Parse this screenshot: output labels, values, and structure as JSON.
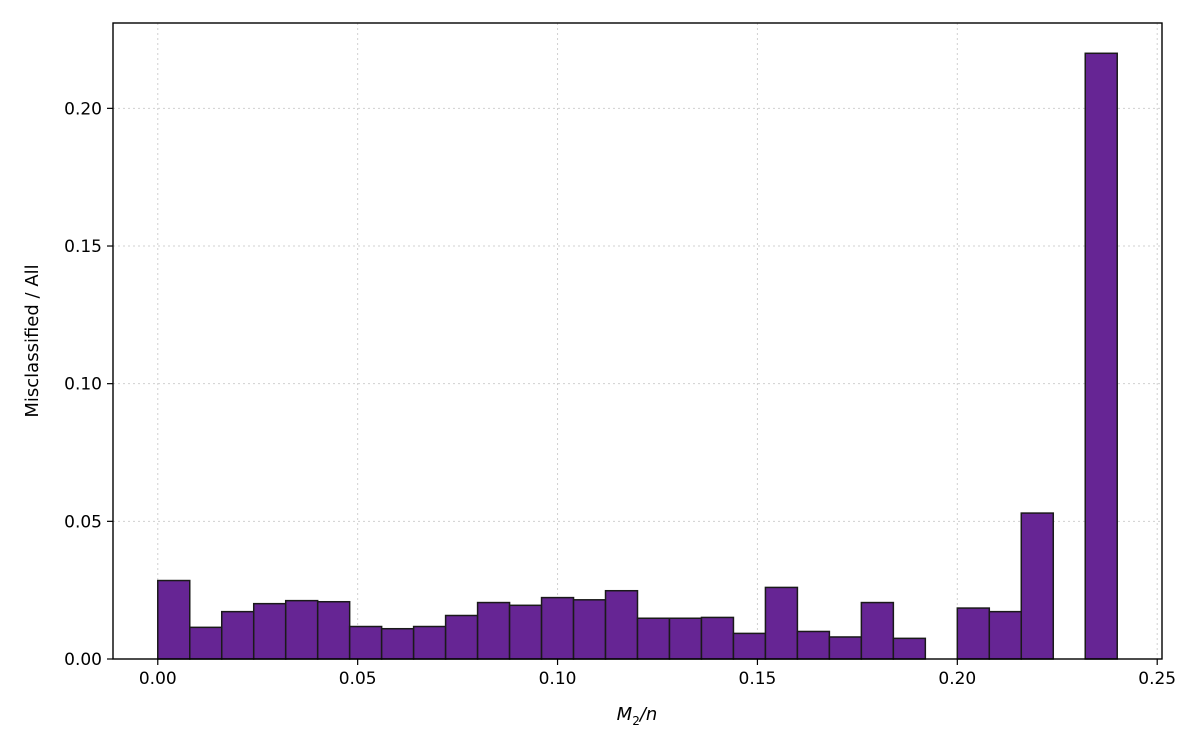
{
  "chart_data": {
    "type": "bar",
    "title": "",
    "xlabel_main": "M",
    "xlabel_sub": "2",
    "xlabel_rest": "/n",
    "ylabel": "Misclassified / All",
    "xlim": [
      -0.0112,
      0.2512
    ],
    "ylim": [
      0,
      0.231
    ],
    "bin_width": 0.008,
    "bins": [
      {
        "x0": 0.0,
        "x1": 0.008,
        "value": 0.0285
      },
      {
        "x0": 0.008,
        "x1": 0.016,
        "value": 0.0115
      },
      {
        "x0": 0.016,
        "x1": 0.024,
        "value": 0.0172
      },
      {
        "x0": 0.024,
        "x1": 0.032,
        "value": 0.0201
      },
      {
        "x0": 0.032,
        "x1": 0.04,
        "value": 0.0212
      },
      {
        "x0": 0.04,
        "x1": 0.048,
        "value": 0.0208
      },
      {
        "x0": 0.048,
        "x1": 0.056,
        "value": 0.0118
      },
      {
        "x0": 0.056,
        "x1": 0.064,
        "value": 0.011
      },
      {
        "x0": 0.064,
        "x1": 0.072,
        "value": 0.0118
      },
      {
        "x0": 0.072,
        "x1": 0.08,
        "value": 0.0158
      },
      {
        "x0": 0.08,
        "x1": 0.088,
        "value": 0.0205
      },
      {
        "x0": 0.088,
        "x1": 0.096,
        "value": 0.0195
      },
      {
        "x0": 0.096,
        "x1": 0.104,
        "value": 0.0223
      },
      {
        "x0": 0.104,
        "x1": 0.112,
        "value": 0.0215
      },
      {
        "x0": 0.112,
        "x1": 0.12,
        "value": 0.0248
      },
      {
        "x0": 0.12,
        "x1": 0.128,
        "value": 0.0148
      },
      {
        "x0": 0.128,
        "x1": 0.136,
        "value": 0.0148
      },
      {
        "x0": 0.136,
        "x1": 0.144,
        "value": 0.0151
      },
      {
        "x0": 0.144,
        "x1": 0.152,
        "value": 0.0093
      },
      {
        "x0": 0.152,
        "x1": 0.16,
        "value": 0.026
      },
      {
        "x0": 0.16,
        "x1": 0.168,
        "value": 0.01
      },
      {
        "x0": 0.168,
        "x1": 0.176,
        "value": 0.008
      },
      {
        "x0": 0.176,
        "x1": 0.184,
        "value": 0.0205
      },
      {
        "x0": 0.184,
        "x1": 0.192,
        "value": 0.0075
      },
      {
        "x0": 0.2,
        "x1": 0.208,
        "value": 0.0185
      },
      {
        "x0": 0.208,
        "x1": 0.216,
        "value": 0.0172
      },
      {
        "x0": 0.216,
        "x1": 0.224,
        "value": 0.053
      },
      {
        "x0": 0.232,
        "x1": 0.24,
        "value": 0.22
      }
    ],
    "xticks": [
      0.0,
      0.05,
      0.1,
      0.15,
      0.2,
      0.25
    ],
    "xtick_labels": [
      "0.00",
      "0.05",
      "0.10",
      "0.15",
      "0.20",
      "0.25"
    ],
    "yticks": [
      0.0,
      0.05,
      0.1,
      0.15,
      0.2
    ],
    "ytick_labels": [
      "0.00",
      "0.05",
      "0.10",
      "0.15",
      "0.20"
    ],
    "grid": true,
    "grid_style": "dotted",
    "legend": "none",
    "colors": {
      "bar_fill": "#662594",
      "bar_edge": "#1a1a1a",
      "grid": "#d0d0d0",
      "axis": "#000000"
    }
  }
}
